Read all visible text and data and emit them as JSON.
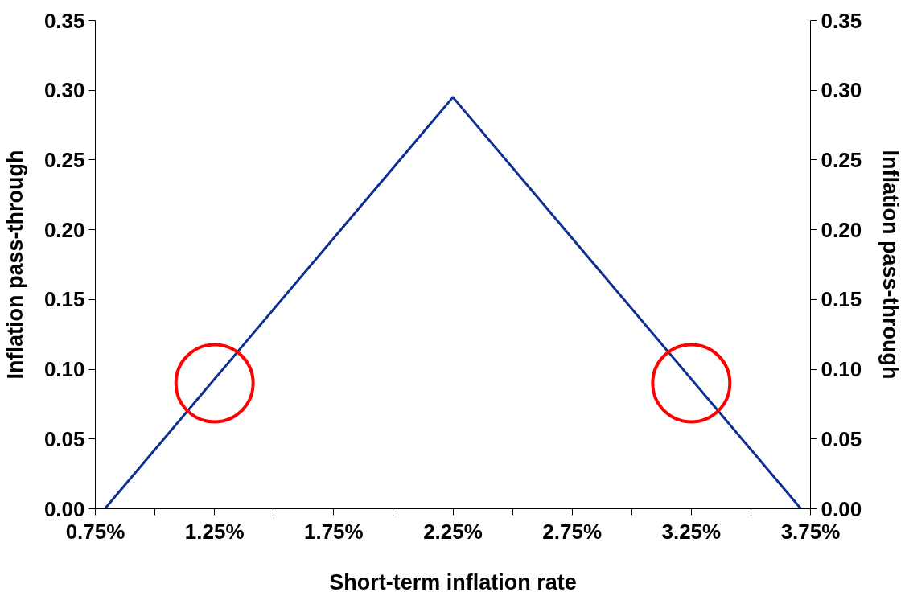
{
  "chart_data": {
    "type": "line",
    "xlabel": "Short-term inflation rate",
    "ylabel": "Inflation pass-through",
    "y2label": "Inflation pass-through",
    "xlim": [
      0.75,
      3.75
    ],
    "xticks": [
      {
        "value": 0.75,
        "label": "0.75%"
      },
      {
        "value": 1.0,
        "label": null
      },
      {
        "value": 1.25,
        "label": "1.25%"
      },
      {
        "value": 1.5,
        "label": null
      },
      {
        "value": 1.75,
        "label": "1.75%"
      },
      {
        "value": 2.0,
        "label": null
      },
      {
        "value": 2.25,
        "label": "2.25%"
      },
      {
        "value": 2.5,
        "label": null
      },
      {
        "value": 2.75,
        "label": "2.75%"
      },
      {
        "value": 3.0,
        "label": null
      },
      {
        "value": 3.25,
        "label": "3.25%"
      },
      {
        "value": 3.5,
        "label": null
      },
      {
        "value": 3.75,
        "label": "3.75%"
      }
    ],
    "ylim": [
      0,
      0.35
    ],
    "yticks": [
      {
        "value": 0,
        "label": "0.00"
      },
      {
        "value": 0.05,
        "label": "0.05"
      },
      {
        "value": 0.1,
        "label": "0.10"
      },
      {
        "value": 0.15,
        "label": "0.15"
      },
      {
        "value": 0.2,
        "label": "0.20"
      },
      {
        "value": 0.25,
        "label": "0.25"
      },
      {
        "value": 0.3,
        "label": "0.30"
      },
      {
        "value": 0.35,
        "label": "0.35"
      }
    ],
    "y2lim": [
      0,
      0.35
    ],
    "y2ticks": [
      {
        "value": 0,
        "label": "0.00"
      },
      {
        "value": 0.05,
        "label": "0.05"
      },
      {
        "value": 0.1,
        "label": "0.10"
      },
      {
        "value": 0.15,
        "label": "0.15"
      },
      {
        "value": 0.2,
        "label": "0.20"
      },
      {
        "value": 0.25,
        "label": "0.25"
      },
      {
        "value": 0.3,
        "label": "0.30"
      },
      {
        "value": 0.35,
        "label": "0.35"
      }
    ],
    "grid": false,
    "marker": "none",
    "line_style": "solid",
    "series": [
      {
        "color": "#0d2f94",
        "x": [
          0.79,
          2.25,
          3.71
        ],
        "values": [
          0,
          0.295,
          0
        ]
      },
      {
        "type": "scatter",
        "marker": "circle",
        "color": "#ff0000",
        "x": [
          1.25,
          3.25
        ],
        "values": [
          0.09,
          0.09
        ]
      }
    ]
  }
}
